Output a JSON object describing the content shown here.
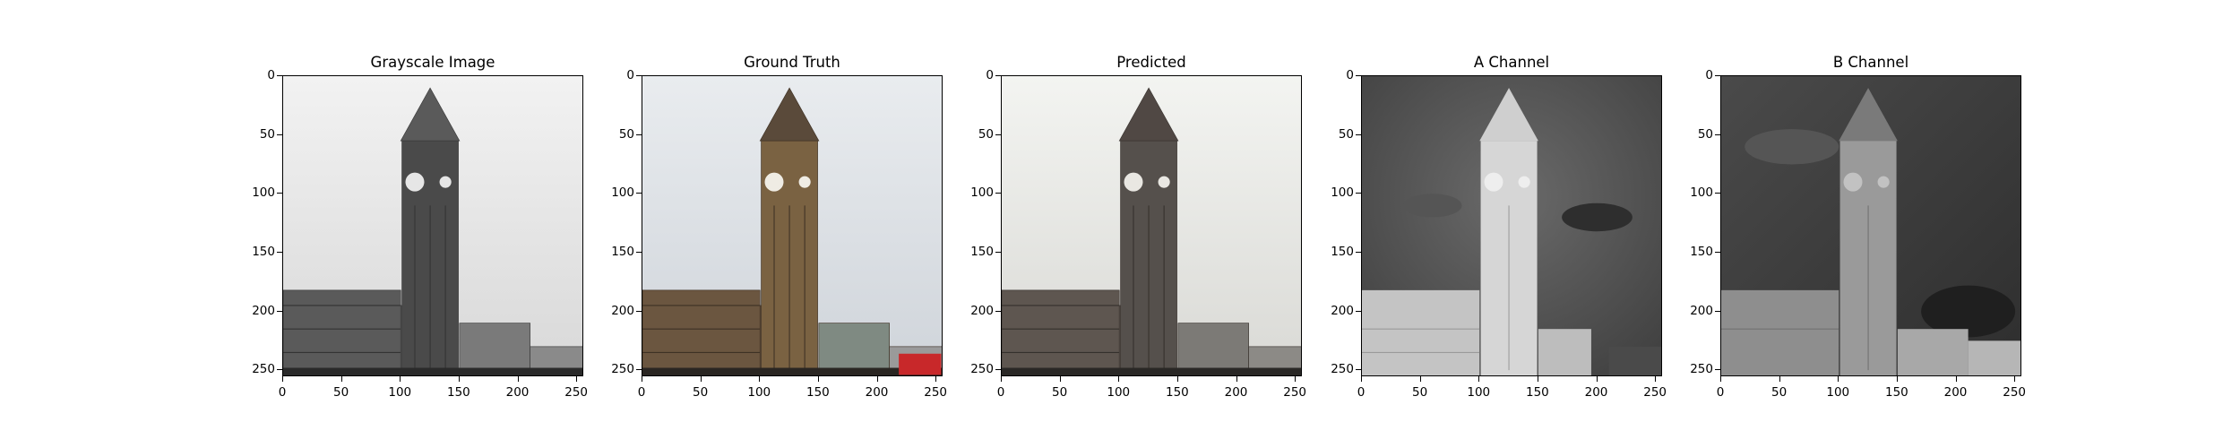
{
  "figure": {
    "panels": [
      {
        "title": "Grayscale Image",
        "variant": "gray"
      },
      {
        "title": "Ground Truth",
        "variant": "color"
      },
      {
        "title": "Predicted",
        "variant": "pred"
      },
      {
        "title": "A Channel",
        "variant": "achan"
      },
      {
        "title": "B Channel",
        "variant": "bchan"
      }
    ],
    "y_ticks": [
      "0",
      "50",
      "100",
      "150",
      "200",
      "250"
    ],
    "x_ticks": [
      "0",
      "50",
      "100",
      "150",
      "200",
      "250"
    ],
    "axis_max": 256
  }
}
